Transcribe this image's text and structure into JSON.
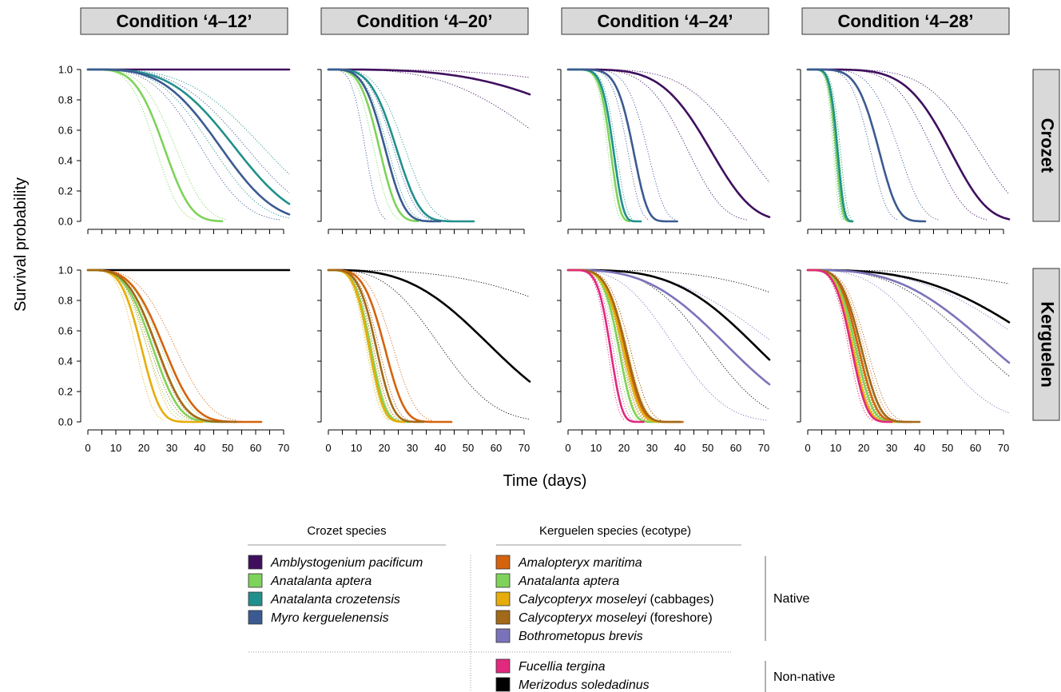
{
  "chart_data": {
    "type": "line",
    "xlabel": "Time (days)",
    "ylabel": "Survival probability",
    "xlim": [
      0,
      72
    ],
    "ylim": [
      0,
      1
    ],
    "xticks": [
      "0",
      "10",
      "20",
      "30",
      "40",
      "50",
      "60",
      "70"
    ],
    "yticks": [
      "0.0",
      "0.2",
      "0.4",
      "0.6",
      "0.8",
      "1.0"
    ],
    "conditions": [
      "Condition ‘4–12’",
      "Condition ‘4–20’",
      "Condition ‘4–24’",
      "Condition ‘4–28’"
    ],
    "islands": [
      "Crozet",
      "Kerguelen"
    ],
    "colors": {
      "amblystogenium": "#3f0f5e",
      "anatalanta": "#7ed35a",
      "crozetensis": "#21908c",
      "myro": "#3b5a91",
      "amalopteryx": "#d5620d",
      "calyco_cabbages": "#e6ad0a",
      "calyco_foreshore": "#a26918",
      "bothrometopus": "#7b73ba",
      "fucellia": "#e0297f",
      "merizodus": "#000000"
    },
    "panels": [
      {
        "row": 0,
        "col": 0,
        "curves": [
          {
            "species": "amblystogenium",
            "median": 10000,
            "shape": 4,
            "end": 72
          },
          {
            "species": "anatalanta",
            "median": 27,
            "shape": 4,
            "end": 48,
            "ci": [
              24,
              31
            ]
          },
          {
            "species": "crozetensis",
            "median": 52,
            "shape": 3.5,
            "end": 72,
            "ci": [
              44,
              62
            ]
          },
          {
            "species": "myro",
            "median": 47,
            "shape": 3.5,
            "end": 72,
            "ci": [
              40,
              56
            ]
          }
        ]
      },
      {
        "row": 0,
        "col": 1,
        "curves": [
          {
            "species": "amblystogenium",
            "median": 110,
            "shape": 3.2,
            "end": 72,
            "ci": [
              80,
              160
            ]
          },
          {
            "species": "anatalanta",
            "median": 18,
            "shape": 4,
            "end": 32,
            "ci": [
              16,
              20
            ]
          },
          {
            "species": "crozetensis",
            "median": 24,
            "shape": 4,
            "end": 52,
            "ci": [
              21,
              27
            ]
          },
          {
            "species": "myro",
            "median": 20,
            "shape": 4,
            "end": 40,
            "ci": [
              13,
              23
            ]
          }
        ]
      },
      {
        "row": 0,
        "col": 2,
        "curves": [
          {
            "species": "amblystogenium",
            "median": 50,
            "shape": 4.5,
            "end": 72,
            "ci": [
              42,
              62
            ]
          },
          {
            "species": "anatalanta",
            "median": 15,
            "shape": 6,
            "end": 22,
            "ci": [
              14,
              16
            ]
          },
          {
            "species": "crozetensis",
            "median": 16,
            "shape": 6,
            "end": 26,
            "ci": [
              15,
              17
            ]
          },
          {
            "species": "myro",
            "median": 23,
            "shape": 6,
            "end": 39,
            "ci": [
              21,
              28
            ]
          }
        ]
      },
      {
        "row": 0,
        "col": 3,
        "curves": [
          {
            "species": "amblystogenium",
            "median": 50,
            "shape": 5,
            "end": 72,
            "ci": [
              44,
              60
            ]
          },
          {
            "species": "anatalanta",
            "median": 10,
            "shape": 6,
            "end": 16,
            "ci": [
              9,
              11
            ]
          },
          {
            "species": "crozetensis",
            "median": 10.5,
            "shape": 6,
            "end": 16,
            "ci": [
              9.5,
              11.5
            ]
          },
          {
            "species": "myro",
            "median": 25,
            "shape": 5,
            "end": 42,
            "ci": [
              22,
              32
            ]
          }
        ]
      },
      {
        "row": 1,
        "col": 0,
        "curves": [
          {
            "species": "merizodus",
            "median": 10000,
            "shape": 4,
            "end": 72
          },
          {
            "species": "amalopteryx",
            "median": 27,
            "shape": 3.5,
            "end": 62,
            "ci": [
              24,
              31
            ]
          },
          {
            "species": "anatalanta",
            "median": 23,
            "shape": 3.5,
            "end": 48,
            "ci": [
              21,
              26
            ]
          },
          {
            "species": "calyco_cabbages",
            "median": 19,
            "shape": 4,
            "end": 41,
            "ci": [
              17,
              21
            ]
          },
          {
            "species": "calyco_foreshore",
            "median": 24.5,
            "shape": 3.5,
            "end": 53,
            "ci": [
              22,
              27
            ]
          }
        ]
      },
      {
        "row": 1,
        "col": 1,
        "curves": [
          {
            "species": "merizodus",
            "median": 58,
            "shape": 3,
            "end": 72,
            "ci": [
              40,
              110
            ]
          },
          {
            "species": "amalopteryx",
            "median": 20,
            "shape": 4,
            "end": 44,
            "ci": [
              18,
              23
            ]
          },
          {
            "species": "anatalanta",
            "median": 15,
            "shape": 4,
            "end": 29,
            "ci": [
              14,
              16
            ]
          },
          {
            "species": "calyco_cabbages",
            "median": 14.5,
            "shape": 4,
            "end": 27,
            "ci": [
              13.5,
              15.5
            ]
          },
          {
            "species": "calyco_foreshore",
            "median": 17,
            "shape": 4,
            "end": 34,
            "ci": [
              16,
              18
            ]
          }
        ]
      },
      {
        "row": 1,
        "col": 2,
        "curves": [
          {
            "species": "merizodus",
            "median": 67,
            "shape": 3.5,
            "end": 72,
            "ci": [
              50,
              110
            ]
          },
          {
            "species": "bothrometopus",
            "median": 57,
            "shape": 3,
            "end": 72,
            "ci": [
              38,
              75
            ]
          },
          {
            "species": "amalopteryx",
            "median": 20,
            "shape": 4.5,
            "end": 41,
            "ci": [
              18.5,
              22
            ]
          },
          {
            "species": "anatalanta",
            "median": 18,
            "shape": 5,
            "end": 33,
            "ci": [
              17,
              19
            ]
          },
          {
            "species": "calyco_cabbages",
            "median": 19.5,
            "shape": 4.5,
            "end": 38,
            "ci": [
              18,
              21
            ]
          },
          {
            "species": "calyco_foreshore",
            "median": 20.5,
            "shape": 4.5,
            "end": 40,
            "ci": [
              19,
              22
            ]
          },
          {
            "species": "fucellia",
            "median": 15,
            "shape": 5,
            "end": 27,
            "ci": [
              14,
              16
            ]
          }
        ]
      },
      {
        "row": 1,
        "col": 3,
        "curves": [
          {
            "species": "merizodus",
            "median": 85,
            "shape": 3,
            "end": 72,
            "ci": [
              60,
              140
            ]
          },
          {
            "species": "bothrometopus",
            "median": 65,
            "shape": 3,
            "end": 72,
            "ci": [
              45,
              80
            ]
          },
          {
            "species": "amalopteryx",
            "median": 18,
            "shape": 4,
            "end": 37,
            "ci": [
              16.5,
              20
            ]
          },
          {
            "species": "anatalanta",
            "median": 17,
            "shape": 4,
            "end": 33,
            "ci": [
              15.5,
              18.5
            ]
          },
          {
            "species": "calyco_cabbages",
            "median": 16,
            "shape": 4,
            "end": 31,
            "ci": [
              14.5,
              17.5
            ]
          },
          {
            "species": "calyco_foreshore",
            "median": 19,
            "shape": 4,
            "end": 40,
            "ci": [
              17.5,
              21
            ]
          },
          {
            "species": "fucellia",
            "median": 15.5,
            "shape": 4,
            "end": 30,
            "ci": [
              14.5,
              17
            ]
          }
        ]
      }
    ]
  },
  "legend": {
    "crozet_title": "Crozet species",
    "kerguelen_title": "Kerguelen species (ecotype)",
    "crozet_items": [
      {
        "key": "amblystogenium",
        "name": "Amblystogenium pacificum",
        "suffix": ""
      },
      {
        "key": "anatalanta",
        "name": "Anatalanta aptera",
        "suffix": ""
      },
      {
        "key": "crozetensis",
        "name": "Anatalanta crozetensis",
        "suffix": ""
      },
      {
        "key": "myro",
        "name": "Myro kerguelenensis",
        "suffix": ""
      }
    ],
    "kerguelen_native": [
      {
        "key": "amalopteryx",
        "name": "Amalopteryx maritima",
        "suffix": ""
      },
      {
        "key": "anatalanta",
        "name": "Anatalanta aptera",
        "suffix": ""
      },
      {
        "key": "calyco_cabbages",
        "name": "Calycopteryx moseleyi",
        "suffix": " (cabbages)"
      },
      {
        "key": "calyco_foreshore",
        "name": "Calycopteryx moseleyi",
        "suffix": " (foreshore)"
      },
      {
        "key": "bothrometopus",
        "name": "Bothrometopus brevis",
        "suffix": ""
      }
    ],
    "kerguelen_nonnative": [
      {
        "key": "fucellia",
        "name": "Fucellia tergina",
        "suffix": ""
      },
      {
        "key": "merizodus",
        "name": "Merizodus soledadinus",
        "suffix": ""
      }
    ],
    "native_label": "Native",
    "nonnative_label": "Non-native"
  }
}
